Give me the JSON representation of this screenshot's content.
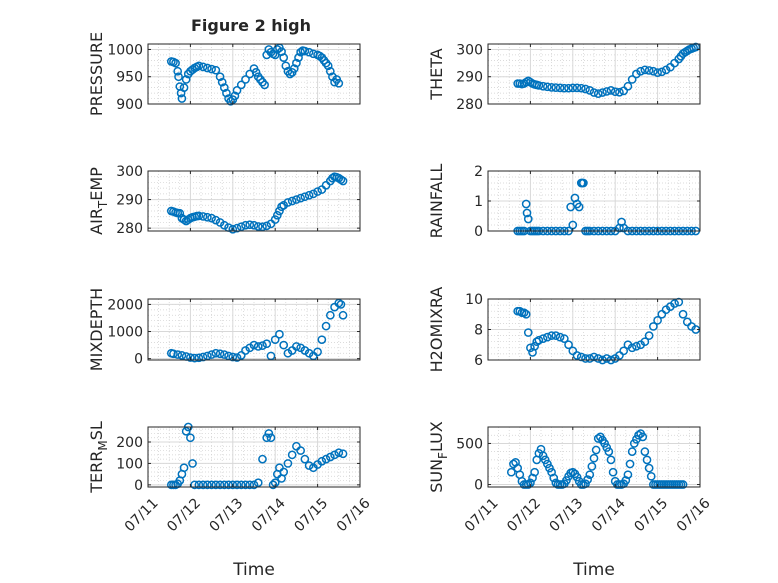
{
  "figure": {
    "title": "Figure 2 high"
  },
  "chart_data": [
    {
      "type": "scatter",
      "ylabel": "PRESSURE",
      "xlabel": "",
      "xlim": [
        0,
        5
      ],
      "ylim": [
        900,
        1010
      ],
      "yticks": [
        900,
        950,
        1000
      ],
      "xticks": [
        0,
        1,
        2,
        3,
        4,
        5
      ],
      "xtick_labels": [
        "07/11",
        "07/12",
        "07/13",
        "07/14",
        "07/15",
        "07/16"
      ],
      "show_xtick_labels": false,
      "grid": true,
      "marker_color": "#0072BD",
      "x": [
        0.55,
        0.6,
        0.65,
        0.7,
        0.72,
        0.75,
        0.78,
        0.8,
        0.85,
        0.9,
        0.95,
        1.0,
        1.05,
        1.1,
        1.15,
        1.2,
        1.3,
        1.4,
        1.5,
        1.6,
        1.7,
        1.75,
        1.8,
        1.85,
        1.9,
        1.95,
        2.0,
        2.05,
        2.1,
        2.2,
        2.3,
        2.4,
        2.5,
        2.55,
        2.6,
        2.65,
        2.7,
        2.75,
        2.8,
        2.85,
        2.9,
        2.95,
        3.0,
        3.05,
        3.1,
        3.15,
        3.2,
        3.25,
        3.3,
        3.35,
        3.4,
        3.45,
        3.5,
        3.55,
        3.6,
        3.65,
        3.7,
        3.8,
        3.9,
        4.0,
        4.05,
        4.1,
        4.15,
        4.2,
        4.25,
        4.3,
        4.35,
        4.4,
        4.45,
        4.5
      ],
      "y": [
        978,
        977,
        975,
        960,
        950,
        932,
        920,
        910,
        930,
        945,
        955,
        960,
        963,
        966,
        968,
        970,
        968,
        966,
        964,
        962,
        950,
        940,
        930,
        920,
        910,
        905,
        908,
        915,
        925,
        935,
        945,
        955,
        965,
        958,
        950,
        945,
        940,
        935,
        990,
        1000,
        995,
        992,
        990,
        1000,
        1003,
        996,
        985,
        970,
        960,
        955,
        958,
        965,
        975,
        985,
        995,
        998,
        997,
        995,
        992,
        990,
        988,
        985,
        980,
        975,
        970,
        960,
        950,
        940,
        945,
        938
      ]
    },
    {
      "type": "scatter",
      "ylabel": "THETA",
      "xlabel": "",
      "xlim": [
        0,
        5
      ],
      "ylim": [
        280,
        302
      ],
      "yticks": [
        280,
        290,
        300
      ],
      "xticks": [
        0,
        1,
        2,
        3,
        4,
        5
      ],
      "xtick_labels": [
        "07/11",
        "07/12",
        "07/13",
        "07/14",
        "07/15",
        "07/16"
      ],
      "show_xtick_labels": false,
      "grid": true,
      "marker_color": "#0072BD",
      "x": [
        0.7,
        0.75,
        0.8,
        0.85,
        0.9,
        0.95,
        1.0,
        1.05,
        1.1,
        1.15,
        1.2,
        1.3,
        1.4,
        1.5,
        1.6,
        1.7,
        1.8,
        1.9,
        2.0,
        2.1,
        2.2,
        2.3,
        2.4,
        2.5,
        2.6,
        2.7,
        2.8,
        2.9,
        3.0,
        3.1,
        3.2,
        3.3,
        3.4,
        3.5,
        3.6,
        3.7,
        3.8,
        3.9,
        4.0,
        4.1,
        4.2,
        4.3,
        4.4,
        4.5,
        4.55,
        4.6,
        4.65,
        4.7,
        4.75,
        4.8,
        4.85,
        4.9
      ],
      "y": [
        287.5,
        287.5,
        287.3,
        287.5,
        288,
        288.5,
        288,
        287.5,
        287.2,
        287,
        286.8,
        286.5,
        286.3,
        286.1,
        286,
        285.9,
        285.8,
        285.8,
        285.9,
        285.9,
        285.8,
        285.5,
        285,
        284.2,
        283.8,
        284.2,
        284.6,
        285,
        284.5,
        284.3,
        284.8,
        286.5,
        289,
        291,
        292,
        292.5,
        292.3,
        292,
        291.5,
        291.8,
        292.5,
        293.5,
        295,
        296.5,
        297.5,
        298.5,
        299,
        299.5,
        300,
        300.3,
        300.6,
        300.9
      ]
    },
    {
      "type": "scatter",
      "ylabel": "AIR_TEMP",
      "ylabel_parts": [
        "AIR",
        "T",
        "EMP"
      ],
      "xlabel": "",
      "xlim": [
        0,
        5
      ],
      "ylim": [
        279,
        300
      ],
      "yticks": [
        280,
        290,
        300
      ],
      "xticks": [
        0,
        1,
        2,
        3,
        4,
        5
      ],
      "xtick_labels": [
        "07/11",
        "07/12",
        "07/13",
        "07/14",
        "07/15",
        "07/16"
      ],
      "show_xtick_labels": false,
      "grid": true,
      "marker_color": "#0072BD",
      "x": [
        0.55,
        0.6,
        0.65,
        0.7,
        0.75,
        0.8,
        0.85,
        0.9,
        0.95,
        1.0,
        1.05,
        1.1,
        1.15,
        1.2,
        1.3,
        1.4,
        1.5,
        1.6,
        1.7,
        1.8,
        1.9,
        2.0,
        2.1,
        2.2,
        2.3,
        2.4,
        2.5,
        2.6,
        2.7,
        2.8,
        2.9,
        3.0,
        3.05,
        3.1,
        3.15,
        3.2,
        3.3,
        3.4,
        3.5,
        3.6,
        3.7,
        3.8,
        3.9,
        4.0,
        4.1,
        4.2,
        4.3,
        4.35,
        4.4,
        4.45,
        4.5,
        4.55,
        4.6
      ],
      "y": [
        286,
        285.8,
        285.5,
        285.3,
        285.2,
        283.5,
        283,
        282.5,
        283,
        283.5,
        283.8,
        284,
        284.2,
        284.3,
        284.1,
        283.8,
        283.5,
        282.8,
        282,
        281,
        280.2,
        279.6,
        280,
        280.5,
        281,
        281.2,
        281,
        280.6,
        280.5,
        280.8,
        281.5,
        283,
        284.5,
        286,
        287.5,
        288,
        289,
        289.5,
        290,
        290.5,
        291,
        291.5,
        292,
        292.8,
        293.5,
        295,
        296.5,
        297.5,
        298,
        297.8,
        297.5,
        297,
        296.5
      ]
    },
    {
      "type": "scatter",
      "ylabel": "RAINFALL",
      "xlabel": "",
      "xlim": [
        0,
        5
      ],
      "ylim": [
        0,
        2
      ],
      "yticks": [
        0,
        1,
        2
      ],
      "xticks": [
        0,
        1,
        2,
        3,
        4,
        5
      ],
      "xtick_labels": [
        "07/11",
        "07/12",
        "07/13",
        "07/14",
        "07/15",
        "07/16"
      ],
      "show_xtick_labels": false,
      "grid": true,
      "marker_color": "#0072BD",
      "x": [
        0.7,
        0.75,
        0.8,
        0.85,
        0.9,
        0.92,
        0.95,
        1.0,
        1.05,
        1.1,
        1.15,
        1.2,
        1.3,
        1.4,
        1.5,
        1.6,
        1.7,
        1.8,
        1.9,
        1.95,
        2.0,
        2.05,
        2.1,
        2.15,
        2.2,
        2.22,
        2.25,
        2.3,
        2.35,
        2.4,
        2.5,
        2.6,
        2.7,
        2.8,
        2.9,
        3.0,
        3.1,
        3.15,
        3.2,
        3.3,
        3.4,
        3.5,
        3.6,
        3.7,
        3.8,
        3.9,
        4.0,
        4.1,
        4.2,
        4.3,
        4.4,
        4.5,
        4.6,
        4.7,
        4.8,
        4.9
      ],
      "y": [
        0,
        0,
        0,
        0,
        0.9,
        0.6,
        0.4,
        0,
        0,
        0,
        0,
        0,
        0,
        0,
        0,
        0,
        0,
        0,
        0,
        0.8,
        0.2,
        1.1,
        0.9,
        0.8,
        1.6,
        1.6,
        1.6,
        0,
        0,
        0,
        0,
        0,
        0,
        0,
        0,
        0,
        0.1,
        0.3,
        0.1,
        0,
        0,
        0,
        0,
        0,
        0,
        0,
        0,
        0,
        0,
        0,
        0,
        0,
        0,
        0,
        0,
        0
      ]
    },
    {
      "type": "scatter",
      "ylabel": "MIXDEPTH",
      "xlabel": "",
      "xlim": [
        0,
        5
      ],
      "ylim": [
        -50,
        2200
      ],
      "yticks": [
        0,
        1000,
        2000
      ],
      "xticks": [
        0,
        1,
        2,
        3,
        4,
        5
      ],
      "xtick_labels": [
        "07/11",
        "07/12",
        "07/13",
        "07/14",
        "07/15",
        "07/16"
      ],
      "show_xtick_labels": false,
      "grid": true,
      "marker_color": "#0072BD",
      "x": [
        0.55,
        0.6,
        0.7,
        0.8,
        0.9,
        1.0,
        1.1,
        1.2,
        1.3,
        1.4,
        1.5,
        1.6,
        1.7,
        1.8,
        1.9,
        2.0,
        2.1,
        2.2,
        2.3,
        2.4,
        2.5,
        2.6,
        2.7,
        2.8,
        2.9,
        3.0,
        3.1,
        3.2,
        3.3,
        3.4,
        3.5,
        3.6,
        3.7,
        3.8,
        3.9,
        4.0,
        4.1,
        4.2,
        4.3,
        4.4,
        4.5,
        4.55,
        4.6
      ],
      "y": [
        200,
        180,
        150,
        120,
        80,
        40,
        20,
        30,
        60,
        100,
        150,
        200,
        180,
        150,
        100,
        60,
        40,
        120,
        300,
        400,
        500,
        450,
        480,
        550,
        100,
        700,
        900,
        500,
        200,
        300,
        450,
        400,
        300,
        200,
        100,
        250,
        700,
        1200,
        1600,
        1900,
        2050,
        2000,
        1600
      ]
    },
    {
      "type": "scatter",
      "ylabel": "H2OMIXRA",
      "xlabel": "",
      "xlim": [
        0,
        5
      ],
      "ylim": [
        6,
        10
      ],
      "yticks": [
        6,
        8,
        10
      ],
      "xticks": [
        0,
        1,
        2,
        3,
        4,
        5
      ],
      "xtick_labels": [
        "07/11",
        "07/12",
        "07/13",
        "07/14",
        "07/15",
        "07/16"
      ],
      "show_xtick_labels": false,
      "grid": true,
      "marker_color": "#0072BD",
      "x": [
        0.7,
        0.75,
        0.8,
        0.85,
        0.9,
        0.95,
        1.0,
        1.05,
        1.1,
        1.15,
        1.2,
        1.3,
        1.4,
        1.5,
        1.6,
        1.7,
        1.8,
        1.9,
        2.0,
        2.1,
        2.2,
        2.3,
        2.4,
        2.5,
        2.6,
        2.7,
        2.8,
        2.9,
        3.0,
        3.1,
        3.2,
        3.3,
        3.4,
        3.5,
        3.6,
        3.7,
        3.8,
        3.9,
        4.0,
        4.1,
        4.2,
        4.3,
        4.4,
        4.5,
        4.6,
        4.7,
        4.8,
        4.9
      ],
      "y": [
        9.2,
        9.2,
        9.1,
        9.1,
        9.0,
        7.8,
        6.8,
        6.5,
        6.9,
        7.2,
        7.3,
        7.4,
        7.5,
        7.6,
        7.6,
        7.5,
        7.4,
        7.0,
        6.6,
        6.3,
        6.2,
        6.1,
        6.1,
        6.2,
        6.1,
        6.0,
        6.1,
        6.0,
        6.1,
        6.3,
        6.6,
        7.0,
        6.8,
        6.9,
        7.0,
        7.2,
        7.6,
        8.2,
        8.6,
        9.0,
        9.3,
        9.5,
        9.7,
        9.8,
        9.0,
        8.5,
        8.2,
        8.0
      ]
    },
    {
      "type": "scatter",
      "ylabel": "TERR_MSL",
      "ylabel_parts": [
        "TERR",
        "M",
        "SL"
      ],
      "xlabel": "Time",
      "xlim": [
        0,
        5
      ],
      "ylim": [
        -10,
        270
      ],
      "yticks": [
        0,
        100,
        200
      ],
      "xticks": [
        0,
        1,
        2,
        3,
        4,
        5
      ],
      "xtick_labels": [
        "07/11",
        "07/12",
        "07/13",
        "07/14",
        "07/15",
        "07/16"
      ],
      "show_xtick_labels": true,
      "grid": true,
      "marker_color": "#0072BD",
      "x": [
        0.55,
        0.6,
        0.65,
        0.7,
        0.75,
        0.8,
        0.85,
        0.9,
        0.95,
        1.0,
        1.05,
        1.1,
        1.2,
        1.3,
        1.4,
        1.5,
        1.6,
        1.7,
        1.8,
        1.9,
        2.0,
        2.1,
        2.2,
        2.3,
        2.4,
        2.5,
        2.6,
        2.7,
        2.8,
        2.85,
        2.9,
        2.95,
        3.0,
        3.05,
        3.1,
        3.15,
        3.2,
        3.3,
        3.4,
        3.5,
        3.6,
        3.7,
        3.8,
        3.9,
        4.0,
        4.1,
        4.2,
        4.3,
        4.4,
        4.5,
        4.6
      ],
      "y": [
        0,
        0,
        0,
        5,
        20,
        50,
        80,
        250,
        270,
        220,
        100,
        0,
        0,
        0,
        0,
        0,
        0,
        0,
        0,
        0,
        0,
        0,
        0,
        0,
        0,
        0,
        10,
        120,
        220,
        240,
        220,
        0,
        10,
        50,
        80,
        30,
        60,
        100,
        140,
        180,
        160,
        120,
        90,
        80,
        95,
        110,
        120,
        130,
        140,
        150,
        145
      ]
    },
    {
      "type": "scatter",
      "ylabel": "SUN_FLUX",
      "ylabel_parts": [
        "SUN",
        "F",
        "LUX"
      ],
      "xlabel": "Time",
      "xlim": [
        0,
        5
      ],
      "ylim": [
        -30,
        700
      ],
      "yticks": [
        0,
        500
      ],
      "xticks": [
        0,
        1,
        2,
        3,
        4,
        5
      ],
      "xtick_labels": [
        "07/11",
        "07/12",
        "07/13",
        "07/14",
        "07/15",
        "07/16"
      ],
      "show_xtick_labels": true,
      "grid": true,
      "marker_color": "#0072BD",
      "x": [
        0.55,
        0.6,
        0.65,
        0.7,
        0.75,
        0.8,
        0.85,
        0.9,
        0.95,
        1.0,
        1.05,
        1.1,
        1.15,
        1.2,
        1.25,
        1.3,
        1.35,
        1.4,
        1.45,
        1.5,
        1.55,
        1.6,
        1.65,
        1.7,
        1.75,
        1.8,
        1.85,
        1.9,
        1.95,
        2.0,
        2.05,
        2.1,
        2.15,
        2.2,
        2.25,
        2.3,
        2.35,
        2.4,
        2.45,
        2.5,
        2.55,
        2.6,
        2.65,
        2.7,
        2.75,
        2.8,
        2.85,
        2.9,
        2.95,
        3.0,
        3.05,
        3.1,
        3.15,
        3.2,
        3.25,
        3.3,
        3.35,
        3.4,
        3.45,
        3.5,
        3.55,
        3.6,
        3.65,
        3.7,
        3.75,
        3.8,
        3.85,
        3.9,
        3.95,
        4.0,
        4.05,
        4.1,
        4.15,
        4.2,
        4.25,
        4.3,
        4.35,
        4.4,
        4.45,
        4.5,
        4.55,
        4.6
      ],
      "y": [
        150,
        250,
        270,
        200,
        120,
        40,
        0,
        0,
        0,
        20,
        80,
        150,
        300,
        380,
        430,
        350,
        300,
        250,
        200,
        150,
        80,
        20,
        0,
        0,
        0,
        10,
        50,
        100,
        140,
        150,
        130,
        90,
        40,
        0,
        0,
        10,
        60,
        120,
        220,
        320,
        420,
        560,
        580,
        540,
        500,
        450,
        400,
        300,
        150,
        40,
        0,
        0,
        0,
        10,
        50,
        120,
        250,
        400,
        500,
        550,
        600,
        620,
        580,
        400,
        300,
        200,
        100,
        0,
        0,
        0,
        0,
        0,
        0,
        0,
        0,
        0,
        0,
        0,
        0,
        0,
        0,
        0
      ]
    }
  ]
}
